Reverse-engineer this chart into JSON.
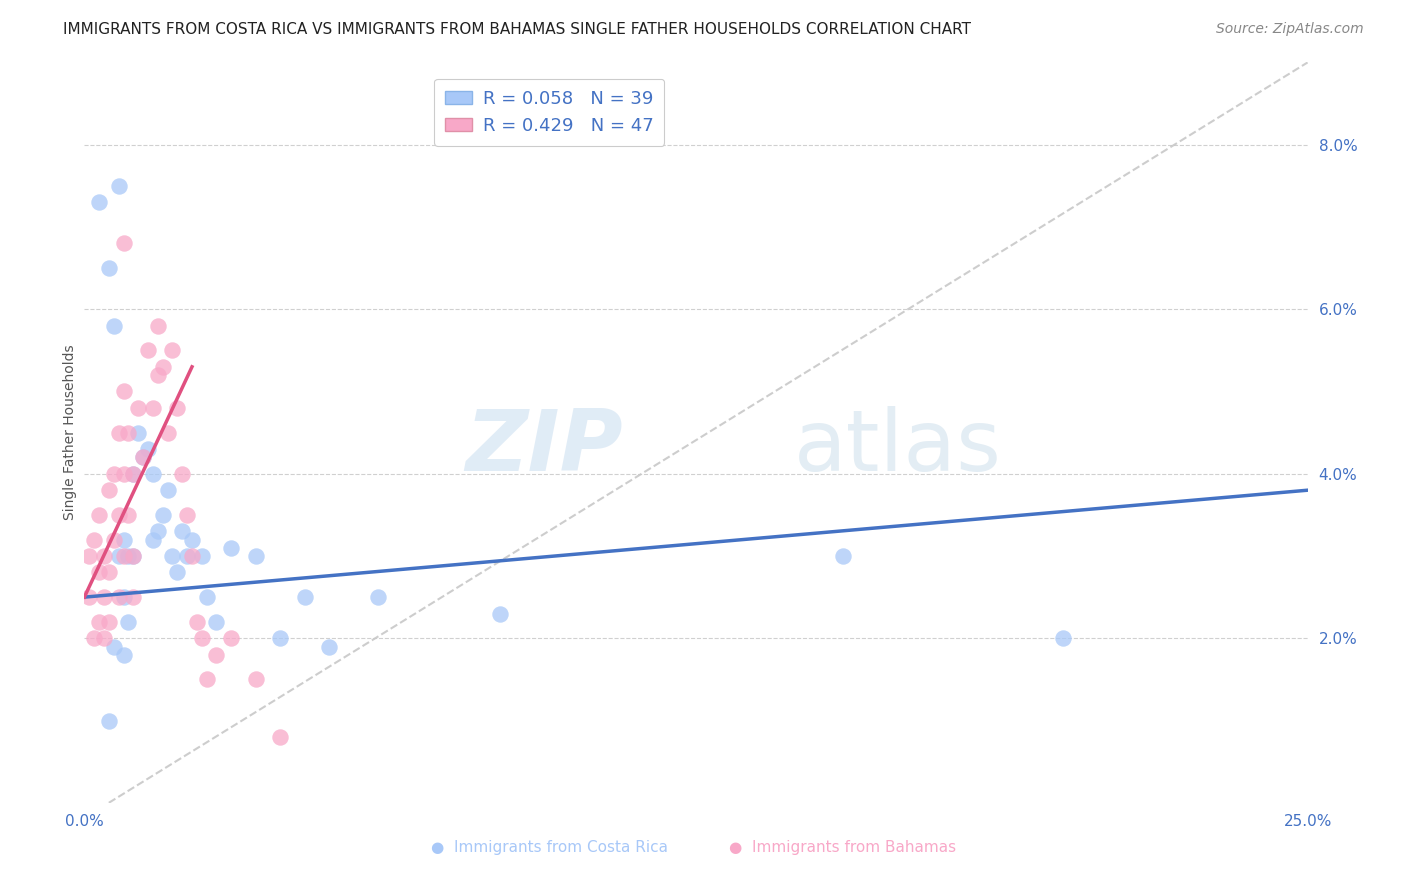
{
  "title": "IMMIGRANTS FROM COSTA RICA VS IMMIGRANTS FROM BAHAMAS SINGLE FATHER HOUSEHOLDS CORRELATION CHART",
  "source": "Source: ZipAtlas.com",
  "ylabel": "Single Father Households",
  "xlim": [
    0.0,
    0.25
  ],
  "ylim": [
    0.0,
    0.09
  ],
  "y_ticks_right": [
    0.02,
    0.04,
    0.06,
    0.08
  ],
  "y_tick_labels_right": [
    "2.0%",
    "4.0%",
    "6.0%",
    "8.0%"
  ],
  "costa_rica_color": "#a8c8f8",
  "bahamas_color": "#f8a8c8",
  "costa_rica_line_color": "#4472c4",
  "bahamas_line_color": "#e05080",
  "diag_line_color": "#c8c8c8",
  "grid_color": "#d0d0d0",
  "background_color": "#ffffff",
  "title_fontsize": 11,
  "axis_label_fontsize": 10,
  "tick_fontsize": 11,
  "source_fontsize": 10,
  "costa_rica_line": [
    0.0,
    0.025,
    0.25,
    0.038
  ],
  "bahamas_line": [
    0.0,
    0.025,
    0.022,
    0.053
  ],
  "diag_line": [
    0.005,
    0.0,
    0.25,
    0.09
  ],
  "costa_rica_x": [
    0.003,
    0.005,
    0.006,
    0.007,
    0.007,
    0.008,
    0.008,
    0.009,
    0.009,
    0.01,
    0.01,
    0.011,
    0.012,
    0.013,
    0.014,
    0.014,
    0.015,
    0.016,
    0.017,
    0.018,
    0.019,
    0.02,
    0.021,
    0.022,
    0.024,
    0.025,
    0.027,
    0.03,
    0.035,
    0.04,
    0.045,
    0.05,
    0.06,
    0.085,
    0.155,
    0.2,
    0.005,
    0.006,
    0.008
  ],
  "costa_rica_y": [
    0.073,
    0.065,
    0.058,
    0.075,
    0.03,
    0.032,
    0.025,
    0.03,
    0.022,
    0.04,
    0.03,
    0.045,
    0.042,
    0.043,
    0.04,
    0.032,
    0.033,
    0.035,
    0.038,
    0.03,
    0.028,
    0.033,
    0.03,
    0.032,
    0.03,
    0.025,
    0.022,
    0.031,
    0.03,
    0.02,
    0.025,
    0.019,
    0.025,
    0.023,
    0.03,
    0.02,
    0.01,
    0.019,
    0.018
  ],
  "bahamas_x": [
    0.001,
    0.001,
    0.002,
    0.002,
    0.003,
    0.003,
    0.003,
    0.004,
    0.004,
    0.004,
    0.005,
    0.005,
    0.005,
    0.006,
    0.006,
    0.007,
    0.007,
    0.007,
    0.008,
    0.008,
    0.008,
    0.009,
    0.009,
    0.01,
    0.01,
    0.01,
    0.011,
    0.012,
    0.013,
    0.014,
    0.015,
    0.016,
    0.017,
    0.018,
    0.019,
    0.02,
    0.021,
    0.022,
    0.023,
    0.024,
    0.025,
    0.027,
    0.03,
    0.035,
    0.04,
    0.015,
    0.008
  ],
  "bahamas_y": [
    0.03,
    0.025,
    0.032,
    0.02,
    0.028,
    0.022,
    0.035,
    0.025,
    0.03,
    0.02,
    0.038,
    0.028,
    0.022,
    0.04,
    0.032,
    0.045,
    0.035,
    0.025,
    0.05,
    0.04,
    0.03,
    0.045,
    0.035,
    0.04,
    0.03,
    0.025,
    0.048,
    0.042,
    0.055,
    0.048,
    0.052,
    0.053,
    0.045,
    0.055,
    0.048,
    0.04,
    0.035,
    0.03,
    0.022,
    0.02,
    0.015,
    0.018,
    0.02,
    0.015,
    0.008,
    0.058,
    0.068
  ]
}
